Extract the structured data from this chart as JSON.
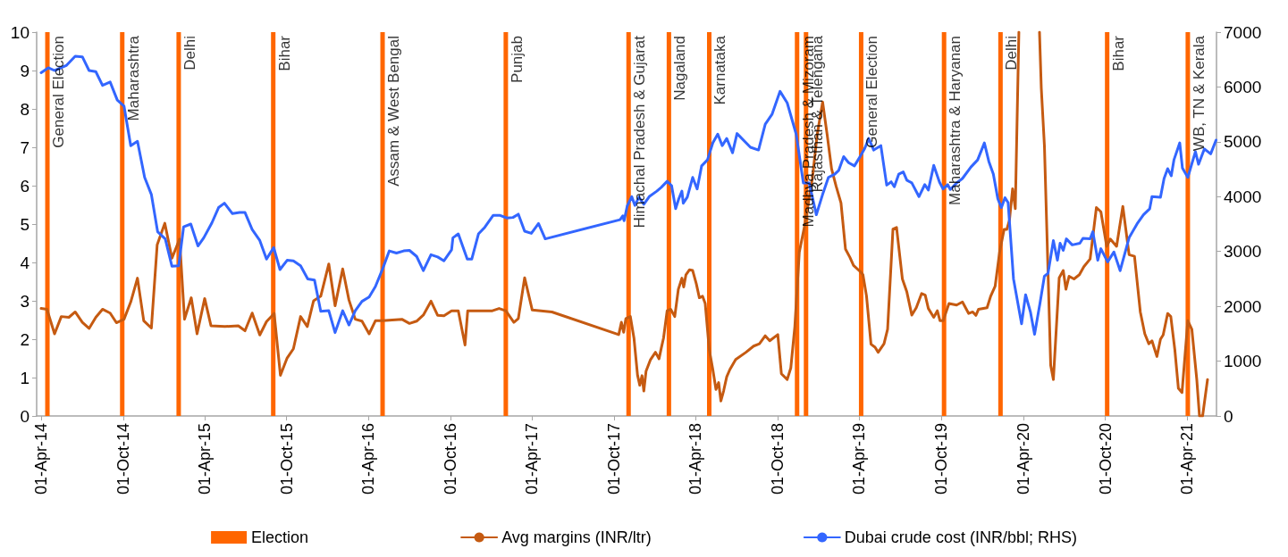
{
  "chart_data": {
    "type": "line",
    "legend": "bottom",
    "xlim": [
      "2014-03-22",
      "2021-06-06"
    ],
    "xticks": [
      {
        "value": "2014-04-01",
        "label": "01-Apr-14"
      },
      {
        "value": "2014-10-01",
        "label": "01-Oct-14"
      },
      {
        "value": "2015-04-01",
        "label": "01-Apr-15"
      },
      {
        "value": "2015-10-01",
        "label": "01-Oct-15"
      },
      {
        "value": "2016-04-01",
        "label": "01-Apr-16"
      },
      {
        "value": "2016-10-01",
        "label": "01-Oct-16"
      },
      {
        "value": "2017-04-01",
        "label": "01-Apr-17"
      },
      {
        "value": "2017-10-01",
        "label": "01-Oct-17"
      },
      {
        "value": "2018-04-01",
        "label": "01-Apr-18"
      },
      {
        "value": "2018-10-01",
        "label": "01-Oct-18"
      },
      {
        "value": "2019-04-01",
        "label": "01-Apr-19"
      },
      {
        "value": "2019-10-01",
        "label": "01-Oct-19"
      },
      {
        "value": "2020-04-01",
        "label": "01-Apr-20"
      },
      {
        "value": "2020-10-01",
        "label": "01-Oct-20"
      },
      {
        "value": "2021-04-01",
        "label": "01-Apr-21"
      }
    ],
    "ylim": [
      0,
      10
    ],
    "yticks": [
      0,
      1,
      2,
      3,
      4,
      5,
      6,
      7,
      8,
      9,
      10
    ],
    "y2lim": [
      0,
      7000
    ],
    "y2ticks": [
      0,
      1000,
      2000,
      3000,
      4000,
      5000,
      6000,
      7000
    ],
    "series": [
      {
        "name": "Election",
        "type": "bar",
        "color": "#ff6600",
        "x": [
          "2014-04-15",
          "2014-09-29",
          "2015-02-02",
          "2015-09-01",
          "2016-05-02",
          "2017-02-01",
          "2017-11-02",
          "2018-01-31",
          "2018-05-01",
          "2018-11-13",
          "2018-12-03",
          "2019-04-05",
          "2019-10-07",
          "2020-02-10",
          "2020-10-05",
          "2021-04-03"
        ],
        "values": [
          10,
          10,
          10,
          10,
          10,
          10,
          10,
          10,
          10,
          10,
          10,
          10,
          10,
          10,
          10,
          10
        ]
      },
      {
        "name": "Avg margins (INR/ltr)",
        "color": "#c55a11",
        "x": [
          "2014-04-01",
          "2014-04-14",
          "2014-05-01",
          "2014-05-16",
          "2014-06-02",
          "2014-06-16",
          "2014-07-02",
          "2014-07-17",
          "2014-08-01",
          "2014-08-16",
          "2014-09-02",
          "2014-09-16",
          "2014-10-03",
          "2014-10-18",
          "2014-11-02",
          "2014-11-16",
          "2014-12-03",
          "2014-12-16",
          "2015-01-02",
          "2015-01-18",
          "2015-02-04",
          "2015-02-15",
          "2015-03-02",
          "2015-03-15",
          "2015-04-01",
          "2015-04-15",
          "2015-05-16",
          "2015-06-15",
          "2015-06-30",
          "2015-07-16",
          "2015-08-02",
          "2015-08-17",
          "2015-09-03",
          "2015-09-17",
          "2015-10-02",
          "2015-10-16",
          "2015-11-01",
          "2015-11-16",
          "2015-11-30",
          "2015-12-16",
          "2016-01-03",
          "2016-01-17",
          "2016-02-03",
          "2016-02-17",
          "2016-03-02",
          "2016-03-17",
          "2016-04-02",
          "2016-04-16",
          "2016-05-02",
          "2016-06-14",
          "2016-07-01",
          "2016-07-17",
          "2016-08-01",
          "2016-08-18",
          "2016-09-02",
          "2016-09-16",
          "2016-10-03",
          "2016-10-18",
          "2016-11-02",
          "2016-11-08",
          "2016-12-03",
          "2017-01-02",
          "2017-01-17",
          "2017-02-01",
          "2017-02-19",
          "2017-03-01",
          "2017-03-15",
          "2017-04-01",
          "2017-05-15",
          "2017-10-11",
          "2017-10-17",
          "2017-10-22",
          "2017-10-27",
          "2017-11-06",
          "2017-11-14",
          "2017-11-22",
          "2017-11-27",
          "2017-12-02",
          "2017-12-06",
          "2017-12-11",
          "2017-12-21",
          "2018-01-01",
          "2018-01-09",
          "2018-01-14",
          "2018-01-19",
          "2018-01-27",
          "2018-02-04",
          "2018-02-13",
          "2018-02-21",
          "2018-03-01",
          "2018-03-05",
          "2018-03-10",
          "2018-03-18",
          "2018-03-25",
          "2018-04-02",
          "2018-04-09",
          "2018-04-16",
          "2018-04-22",
          "2018-05-01",
          "2018-05-09",
          "2018-05-16",
          "2018-05-22",
          "2018-05-27",
          "2018-06-02",
          "2018-06-09",
          "2018-06-16",
          "2018-06-29",
          "2018-07-22",
          "2018-08-08",
          "2018-08-21",
          "2018-09-03",
          "2018-09-13",
          "2018-10-01",
          "2018-10-09",
          "2018-10-22",
          "2018-10-30",
          "2018-11-08",
          "2018-11-18",
          "2018-12-01",
          "2018-12-17",
          "2018-12-28",
          "2019-01-09",
          "2019-01-19",
          "2019-01-29",
          "2019-02-08",
          "2019-02-19",
          "2019-03-01",
          "2019-03-11",
          "2019-03-19",
          "2019-04-04",
          "2019-04-09",
          "2019-04-17",
          "2019-04-27",
          "2019-05-06",
          "2019-05-13",
          "2019-05-26",
          "2019-06-03",
          "2019-06-15",
          "2019-06-23",
          "2019-07-06",
          "2019-07-16",
          "2019-07-27",
          "2019-08-06",
          "2019-08-18",
          "2019-08-26",
          "2019-09-02",
          "2019-09-14",
          "2019-09-22",
          "2019-09-28",
          "2019-10-05",
          "2019-10-18",
          "2019-11-04",
          "2019-11-17",
          "2019-12-01",
          "2019-12-10",
          "2019-12-17",
          "2019-12-23",
          "2020-01-11",
          "2020-01-19",
          "2020-01-29",
          "2020-02-08",
          "2020-02-18",
          "2020-02-24",
          "2020-03-01",
          "2020-03-08",
          "2020-03-14",
          "2020-03-22",
          "2020-04-15",
          "2020-05-07",
          "2020-05-11",
          "2020-05-18",
          "2020-06-01",
          "2020-06-07",
          "2020-06-20",
          "2020-06-29",
          "2020-07-05",
          "2020-07-12",
          "2020-07-23",
          "2020-08-04",
          "2020-08-14",
          "2020-08-28",
          "2020-09-11",
          "2020-09-21",
          "2020-10-04",
          "2020-10-12",
          "2020-10-26",
          "2020-11-09",
          "2020-11-23",
          "2020-12-05",
          "2020-12-18",
          "2020-12-28",
          "2021-01-06",
          "2021-01-13",
          "2021-01-24",
          "2021-02-01",
          "2021-02-07",
          "2021-02-17",
          "2021-02-24",
          "2021-03-05",
          "2021-03-13",
          "2021-03-21",
          "2021-04-03",
          "2021-04-12",
          "2021-04-23",
          "2021-04-29",
          "2021-05-06",
          "2021-05-17"
        ],
        "values": [
          2.8,
          2.78,
          2.14,
          2.59,
          2.57,
          2.71,
          2.44,
          2.28,
          2.57,
          2.78,
          2.68,
          2.43,
          2.52,
          2.97,
          3.59,
          2.48,
          2.29,
          4.46,
          5.02,
          4.11,
          4.61,
          2.52,
          3.08,
          2.14,
          3.06,
          2.35,
          2.33,
          2.35,
          2.22,
          2.68,
          2.11,
          2.46,
          2.67,
          1.06,
          1.51,
          1.75,
          2.59,
          2.33,
          3.0,
          3.12,
          3.96,
          2.87,
          3.83,
          3.02,
          2.52,
          2.47,
          2.14,
          2.48,
          2.48,
          2.52,
          2.41,
          2.47,
          2.63,
          2.99,
          2.62,
          2.61,
          2.74,
          2.74,
          1.85,
          2.74,
          2.74,
          2.74,
          2.8,
          2.74,
          2.44,
          2.54,
          3.6,
          2.76,
          2.71,
          2.12,
          2.44,
          2.18,
          2.54,
          2.59,
          2.03,
          1.06,
          0.8,
          1.05,
          0.65,
          1.17,
          1.47,
          1.66,
          1.49,
          1.77,
          2.03,
          2.74,
          2.78,
          2.59,
          3.3,
          3.59,
          3.36,
          3.68,
          3.81,
          3.79,
          3.45,
          3.08,
          3.12,
          2.93,
          1.73,
          1.21,
          0.69,
          0.87,
          0.39,
          0.65,
          1.02,
          1.21,
          1.47,
          1.66,
          1.82,
          1.88,
          2.09,
          1.96,
          2.12,
          1.1,
          0.95,
          1.25,
          2.33,
          4.27,
          5.02,
          6.18,
          7.34,
          8.18,
          7.34,
          6.44,
          5.99,
          5.55,
          4.35,
          4.13,
          3.92,
          3.75,
          3.68,
          3.12,
          1.87,
          1.79,
          1.66,
          1.88,
          2.26,
          4.87,
          4.91,
          3.57,
          3.23,
          2.63,
          2.82,
          3.19,
          3.15,
          2.8,
          2.57,
          2.74,
          2.48,
          2.48,
          2.93,
          2.89,
          2.97,
          2.67,
          2.71,
          2.62,
          2.78,
          2.82,
          3.12,
          3.38,
          4.27,
          4.86,
          4.86,
          5.1,
          5.92,
          5.4,
          10,
          null,
          10,
          8.54,
          7.04,
          1.32,
          0.95,
          3.6,
          3.79,
          3.3,
          3.64,
          3.57,
          3.68,
          3.89,
          4.09,
          5.43,
          5.32,
          4.42,
          4.61,
          4.42,
          5.46,
          4.2,
          4.16,
          2.71,
          2.14,
          1.88,
          1.96,
          1.55,
          2.0,
          2.11,
          2.67,
          2.59,
          1.73,
          0.72,
          0.61,
          2.48,
          2.26,
          0.95,
          0,
          0,
          0.95
        ]
      },
      {
        "name": "Dubai crude cost (INR/bbl; RHS)",
        "axis": "y2",
        "color": "#3366ff",
        "x": [
          "2014-04-01",
          "2014-04-17",
          "2014-05-01",
          "2014-05-27",
          "2014-06-16",
          "2014-07-02",
          "2014-07-17",
          "2014-08-01",
          "2014-08-16",
          "2014-09-02",
          "2014-09-18",
          "2014-10-03",
          "2014-10-18",
          "2014-11-02",
          "2014-11-18",
          "2014-12-03",
          "2014-12-17",
          "2015-01-03",
          "2015-01-18",
          "2015-02-02",
          "2015-02-13",
          "2015-03-01",
          "2015-03-17",
          "2015-03-30",
          "2015-04-17",
          "2015-05-02",
          "2015-05-15",
          "2015-06-02",
          "2015-06-18",
          "2015-06-30",
          "2015-07-16",
          "2015-08-02",
          "2015-08-17",
          "2015-09-02",
          "2015-09-16",
          "2015-10-02",
          "2015-10-16",
          "2015-11-01",
          "2015-11-17",
          "2015-12-02",
          "2015-12-16",
          "2016-01-03",
          "2016-01-17",
          "2016-02-03",
          "2016-02-17",
          "2016-03-02",
          "2016-03-17",
          "2016-04-02",
          "2016-04-16",
          "2016-05-02",
          "2016-05-17",
          "2016-06-02",
          "2016-06-18",
          "2016-07-01",
          "2016-07-17",
          "2016-08-01",
          "2016-08-18",
          "2016-09-02",
          "2016-09-16",
          "2016-10-03",
          "2016-10-06",
          "2016-10-18",
          "2016-11-07",
          "2016-11-17",
          "2016-12-02",
          "2016-12-16",
          "2017-01-04",
          "2017-01-18",
          "2017-02-04",
          "2017-02-17",
          "2017-03-01",
          "2017-03-15",
          "2017-03-30",
          "2017-04-15",
          "2017-04-30",
          "2017-10-14",
          "2017-10-20",
          "2017-10-23",
          "2017-10-30",
          "2017-11-09",
          "2017-11-16",
          "2017-11-25",
          "2017-12-06",
          "2017-12-18",
          "2018-01-04",
          "2018-01-14",
          "2018-01-27",
          "2018-02-06",
          "2018-02-15",
          "2018-02-22",
          "2018-03-01",
          "2018-03-04",
          "2018-03-13",
          "2018-03-25",
          "2018-04-04",
          "2018-04-14",
          "2018-04-27",
          "2018-05-09",
          "2018-05-20",
          "2018-05-30",
          "2018-06-09",
          "2018-06-22",
          "2018-07-02",
          "2018-08-01",
          "2018-08-19",
          "2018-09-03",
          "2018-09-18",
          "2018-10-06",
          "2018-10-22",
          "2018-11-11",
          "2018-11-27",
          "2018-12-10",
          "2018-12-26",
          "2019-01-09",
          "2019-01-22",
          "2019-02-05",
          "2019-02-14",
          "2019-02-25",
          "2019-03-08",
          "2019-03-21",
          "2019-04-04",
          "2019-04-13",
          "2019-04-22",
          "2019-05-03",
          "2019-05-19",
          "2019-06-01",
          "2019-06-11",
          "2019-06-18",
          "2019-06-28",
          "2019-07-08",
          "2019-07-16",
          "2019-07-27",
          "2019-08-12",
          "2019-08-25",
          "2019-09-02",
          "2019-09-14",
          "2019-09-27",
          "2019-10-05",
          "2019-10-15",
          "2019-10-21",
          "2019-11-04",
          "2019-11-17",
          "2019-12-06",
          "2019-12-21",
          "2020-01-05",
          "2020-01-15",
          "2020-01-25",
          "2020-02-04",
          "2020-02-12",
          "2020-02-20",
          "2020-02-27",
          "2020-03-10",
          "2020-03-28",
          "2020-04-06",
          "2020-04-17",
          "2020-04-26",
          "2020-05-08",
          "2020-05-18",
          "2020-05-26",
          "2020-06-07",
          "2020-06-16",
          "2020-06-22",
          "2020-06-29",
          "2020-07-06",
          "2020-07-19",
          "2020-08-05",
          "2020-08-12",
          "2020-08-28",
          "2020-09-03",
          "2020-09-14",
          "2020-09-21",
          "2020-10-06",
          "2020-10-20",
          "2020-11-03",
          "2020-11-23",
          "2020-12-12",
          "2020-12-25",
          "2021-01-08",
          "2021-01-13",
          "2021-02-01",
          "2021-02-09",
          "2021-02-17",
          "2021-02-25",
          "2021-03-03",
          "2021-03-16",
          "2021-03-22",
          "2021-04-03",
          "2021-04-20",
          "2021-04-27",
          "2021-05-10",
          "2021-05-24",
          "2021-06-05"
        ],
        "values": [
          6260,
          6350,
          6300,
          6390,
          6560,
          6550,
          6300,
          6280,
          6030,
          6090,
          5760,
          5650,
          4930,
          5010,
          4350,
          4040,
          3360,
          3230,
          2730,
          2740,
          3450,
          3500,
          3100,
          3250,
          3520,
          3800,
          3880,
          3690,
          3710,
          3710,
          3400,
          3200,
          2860,
          3070,
          2670,
          2840,
          2830,
          2740,
          2500,
          2480,
          1910,
          1920,
          1520,
          1920,
          1660,
          1920,
          2090,
          2170,
          2360,
          2680,
          3010,
          2970,
          3010,
          3020,
          2910,
          2650,
          2940,
          2900,
          2830,
          3030,
          3250,
          3320,
          2860,
          2860,
          3320,
          3440,
          3660,
          3660,
          3610,
          3620,
          3680,
          3370,
          3330,
          3510,
          3230,
          3580,
          3650,
          3560,
          3830,
          4000,
          3840,
          3990,
          3860,
          4000,
          4100,
          4170,
          4280,
          4200,
          3780,
          3960,
          4100,
          3880,
          3990,
          4350,
          4140,
          4560,
          4670,
          4980,
          5140,
          4930,
          5060,
          4800,
          5150,
          4900,
          4850,
          5320,
          5500,
          5920,
          5710,
          5140,
          4250,
          4250,
          3670,
          4040,
          4350,
          4410,
          4480,
          4730,
          4620,
          4560,
          4750,
          4880,
          5060,
          4850,
          4930,
          4210,
          4270,
          4180,
          4410,
          4450,
          4300,
          4250,
          4000,
          4220,
          4120,
          4570,
          4260,
          4140,
          4220,
          4130,
          4250,
          4330,
          4540,
          4670,
          4980,
          4640,
          4410,
          3960,
          3800,
          3980,
          3890,
          2500,
          1680,
          2210,
          1890,
          1490,
          2050,
          2550,
          2600,
          3200,
          2840,
          3150,
          3020,
          3230,
          3120,
          3150,
          3240,
          3230,
          3360,
          2840,
          3050,
          2810,
          2990,
          2650,
          3250,
          3520,
          3670,
          3780,
          4000,
          3990,
          4330,
          4510,
          4380,
          4670,
          4980,
          4520,
          4350,
          4820,
          4590,
          4870,
          4780,
          5030
        ]
      }
    ],
    "annotations": [
      {
        "text": "General Election",
        "x": "2014-04-15",
        "y": 10
      },
      {
        "text": "Maharashtra",
        "x": "2014-09-29",
        "y": 10
      },
      {
        "text": "Delhi",
        "x": "2015-02-02",
        "y": 10
      },
      {
        "text": "Bihar",
        "x": "2015-09-01",
        "y": 10
      },
      {
        "text": "Assam & West Bengal",
        "x": "2016-05-02",
        "y": 10
      },
      {
        "text": "Punjab",
        "x": "2017-02-01",
        "y": 10
      },
      {
        "text": "Himachal Pradesh & Gujarat",
        "x": "2017-11-02",
        "y": 10
      },
      {
        "text": "Nagaland",
        "x": "2018-01-31",
        "y": 10
      },
      {
        "text": "Karnataka",
        "x": "2018-05-01",
        "y": 10
      },
      {
        "text": "Madhya Pradesh & Mizoram",
        "x": "2018-11-13",
        "y": 10
      },
      {
        "text": "Rajasthan & Telengana",
        "x": "2018-12-03",
        "y": 10
      },
      {
        "text": "General Election",
        "x": "2019-04-05",
        "y": 10
      },
      {
        "text": "Maharashtra & Haryanan",
        "x": "2019-10-07",
        "y": 10
      },
      {
        "text": "Delhi",
        "x": "2020-02-10",
        "y": 10
      },
      {
        "text": "Bihar",
        "x": "2020-10-05",
        "y": 10
      },
      {
        "text": "WB, TN & Kerala",
        "x": "2021-04-03",
        "y": 10
      }
    ]
  }
}
